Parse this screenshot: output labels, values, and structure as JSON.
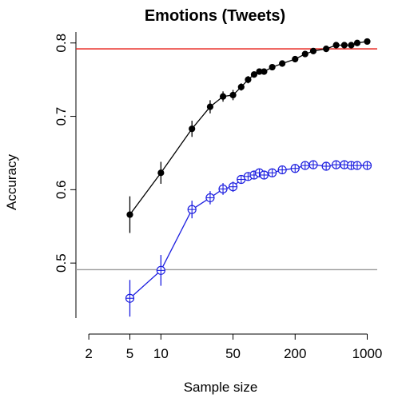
{
  "chart_data": {
    "type": "line",
    "title": "Emotions (Tweets)",
    "xlabel": "Sample size",
    "ylabel": "Accuracy",
    "x_scale": "log",
    "xlim": [
      1.5,
      1250
    ],
    "ylim": [
      0.425,
      0.815
    ],
    "x_ticks": [
      2,
      5,
      10,
      50,
      200,
      1000
    ],
    "x_tick_labels": [
      "2",
      "5",
      "10",
      "50",
      "200",
      "1000"
    ],
    "y_ticks": [
      0.5,
      0.6,
      0.7,
      0.8
    ],
    "y_tick_labels": [
      "0.5",
      "0.6",
      "0.7",
      "0.8"
    ],
    "grid": false,
    "legend": "none",
    "hlines": [
      {
        "y": 0.792,
        "color": "#e8201a"
      },
      {
        "y": 0.491,
        "color": "#9a9a9a"
      }
    ],
    "series": [
      {
        "color": "#000000",
        "marker": "filled-circle",
        "x": [
          5,
          10,
          20,
          30,
          40,
          50,
          60,
          70,
          80,
          90,
          100,
          120,
          150,
          200,
          250,
          300,
          400,
          500,
          600,
          700,
          800,
          1000
        ],
        "y": [
          0.566,
          0.623,
          0.683,
          0.713,
          0.727,
          0.729,
          0.74,
          0.75,
          0.757,
          0.761,
          0.761,
          0.767,
          0.772,
          0.778,
          0.785,
          0.789,
          0.792,
          0.797,
          0.797,
          0.797,
          0.8,
          0.802
        ],
        "err": [
          0.025,
          0.015,
          0.011,
          0.009,
          0.007,
          0.007,
          0.005,
          0.005,
          0.004,
          0.004,
          0.004,
          0.003,
          0.003,
          0.003,
          0.003,
          0.002,
          0.002,
          0.002,
          0.002,
          0.002,
          0.002,
          0.002
        ]
      },
      {
        "color": "#1c1ee0",
        "marker": "open-circle-cross",
        "x": [
          5,
          10,
          20,
          30,
          40,
          50,
          60,
          70,
          80,
          90,
          100,
          120,
          150,
          200,
          250,
          300,
          400,
          500,
          600,
          700,
          800,
          1000
        ],
        "y": [
          0.452,
          0.49,
          0.573,
          0.589,
          0.601,
          0.604,
          0.614,
          0.618,
          0.62,
          0.623,
          0.62,
          0.623,
          0.627,
          0.629,
          0.633,
          0.634,
          0.632,
          0.634,
          0.634,
          0.633,
          0.633,
          0.633
        ],
        "err": [
          0.025,
          0.021,
          0.012,
          0.009,
          0.008,
          0.007,
          0.006,
          0.005,
          0.005,
          0.004,
          0.004,
          0.004,
          0.003,
          0.003,
          0.003,
          0.003,
          0.002,
          0.002,
          0.002,
          0.002,
          0.002,
          0.002
        ]
      }
    ]
  }
}
